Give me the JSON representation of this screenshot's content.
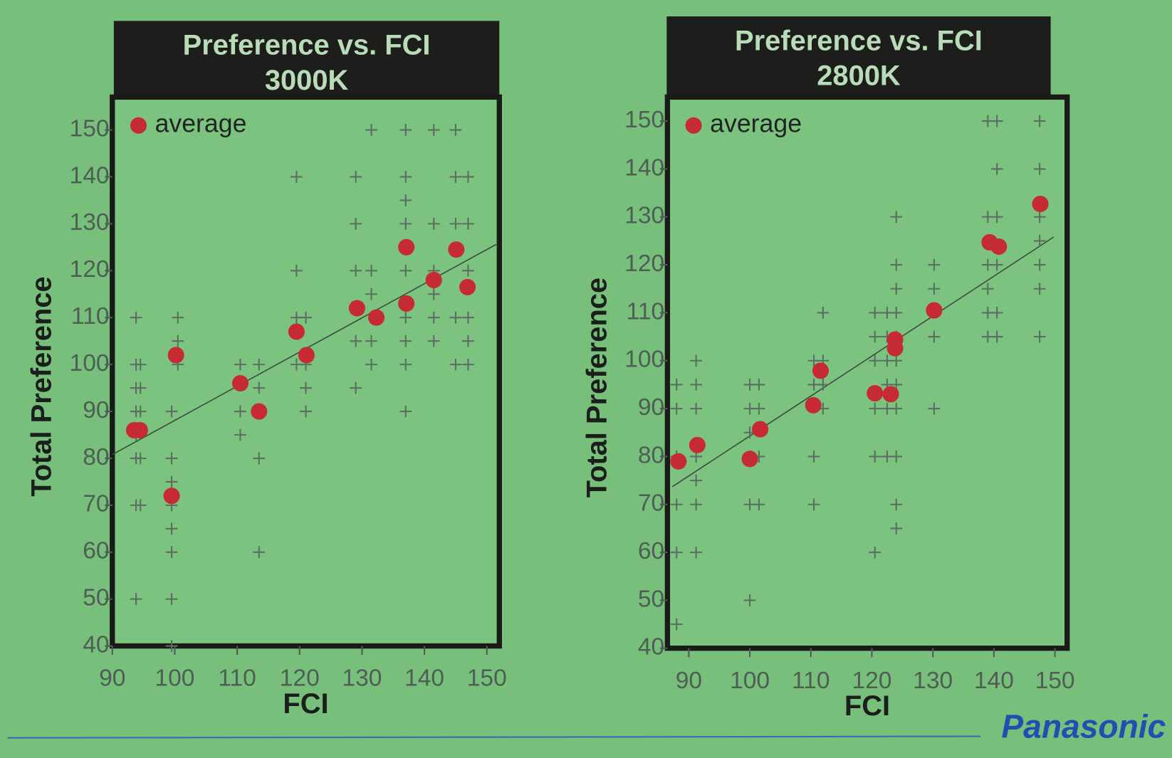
{
  "chart_data": [
    {
      "type": "scatter",
      "title": "Preference vs. FCI",
      "subtitle": "3000K",
      "x_label": "FCI",
      "y_label": "Total Preference",
      "xlim": [
        90,
        152
      ],
      "ylim": [
        40,
        157
      ],
      "xticks": [
        90,
        100,
        110,
        120,
        130,
        140,
        150
      ],
      "yticks": [
        40,
        50,
        60,
        70,
        80,
        90,
        100,
        110,
        120,
        130,
        140,
        150
      ],
      "legend": "upper left",
      "series": [
        {
          "marker": "plus",
          "color": "#5b6e63",
          "x": [
            93.8,
            93.8,
            93.8,
            93.8,
            93.8,
            93.8,
            93.8,
            93.8,
            94.5,
            94.5,
            94.5,
            94.5,
            94.5,
            99.5,
            99.5,
            99.5,
            99.5,
            99.5,
            99.5,
            99.5,
            99.5,
            100.5,
            100.5,
            100.5,
            110.5,
            110.5,
            110.5,
            113.5,
            113.5,
            113.5,
            113.5,
            119.5,
            119.5,
            119.5,
            119.5,
            121,
            121,
            121,
            121,
            129,
            129,
            129,
            129,
            129,
            131.5,
            131.5,
            131.5,
            131.5,
            131.5,
            137,
            137,
            137,
            137,
            137,
            137,
            137,
            137,
            137,
            141.5,
            141.5,
            141.5,
            141.5,
            141.5,
            141.5,
            145,
            145,
            145,
            145,
            145,
            147,
            147,
            147,
            147,
            147,
            147
          ],
          "values": [
            110,
            100,
            95,
            90,
            85,
            80,
            70,
            50,
            100,
            95,
            90,
            80,
            70,
            90,
            80,
            75,
            70,
            65,
            60,
            50,
            40,
            110,
            105,
            100,
            100,
            90,
            85,
            100,
            95,
            80,
            60,
            140,
            120,
            110,
            100,
            110,
            100,
            95,
            90,
            140,
            130,
            120,
            105,
            95,
            150,
            120,
            115,
            105,
            100,
            150,
            140,
            135,
            130,
            120,
            110,
            105,
            100,
            90,
            150,
            130,
            120,
            115,
            110,
            105,
            150,
            140,
            130,
            110,
            100,
            140,
            130,
            120,
            110,
            105,
            100
          ]
        },
        {
          "name": "average",
          "marker": "circle",
          "color": "#c62a33",
          "x": [
            93.5,
            94.4,
            100.2,
            99.5,
            110.5,
            113.5,
            119.5,
            121.1,
            129.2,
            132.3,
            137.1,
            137.1,
            141.5,
            145.1,
            146.9
          ],
          "values": [
            86,
            86,
            102,
            72,
            96,
            90,
            107,
            102,
            112,
            110,
            125,
            113,
            118,
            124.5,
            116.5
          ]
        }
      ],
      "fit": {
        "color": "#3c4a40",
        "x": [
          90,
          151.5
        ],
        "values": [
          80.8,
          125.6
        ]
      }
    },
    {
      "type": "scatter",
      "title": "Preference vs. FCI",
      "subtitle": "2800K",
      "x_label": "FCI",
      "y_label": "Total Preference",
      "xlim": [
        86.5,
        152
      ],
      "ylim": [
        40,
        155
      ],
      "xticks": [
        90,
        100,
        110,
        120,
        130,
        140,
        150
      ],
      "yticks": [
        40,
        50,
        60,
        70,
        80,
        90,
        100,
        110,
        120,
        130,
        140,
        150
      ],
      "legend": "upper left",
      "series": [
        {
          "marker": "plus",
          "color": "#5b6e63",
          "x": [
            88,
            88,
            88,
            88,
            88,
            88,
            91.2,
            91.2,
            91.2,
            91.2,
            91.2,
            91.2,
            91.2,
            100,
            100,
            100,
            100,
            100,
            100,
            101.5,
            101.5,
            101.5,
            101.5,
            110.5,
            110.5,
            110.5,
            110.5,
            112,
            112,
            112,
            112,
            120.5,
            120.5,
            120.5,
            120.5,
            120.5,
            120.5,
            122.5,
            122.5,
            122.5,
            122.5,
            122.5,
            122.5,
            124,
            124,
            124,
            124,
            124,
            124,
            124,
            124,
            124,
            124,
            124,
            130.2,
            130.2,
            130.2,
            130.2,
            139,
            139,
            139,
            139,
            139,
            139,
            140.5,
            140.5,
            140.5,
            140.5,
            140.5,
            140.5,
            147.5,
            147.5,
            147.5,
            147.5,
            147.5,
            147.5,
            147.5
          ],
          "values": [
            95,
            90,
            80,
            70,
            60,
            45,
            100,
            95,
            90,
            80,
            75,
            70,
            60,
            95,
            90,
            85,
            80,
            70,
            50,
            95,
            90,
            80,
            70,
            100,
            95,
            80,
            70,
            110,
            100,
            95,
            90,
            110,
            105,
            100,
            90,
            80,
            60,
            110,
            105,
            100,
            95,
            90,
            80,
            130,
            120,
            115,
            110,
            105,
            100,
            95,
            90,
            80,
            70,
            65,
            120,
            115,
            105,
            90,
            150,
            130,
            120,
            115,
            110,
            105,
            150,
            140,
            130,
            120,
            110,
            105,
            150,
            140,
            130,
            125,
            120,
            115,
            105
          ]
        },
        {
          "name": "average",
          "marker": "circle",
          "color": "#c62a33",
          "x": [
            88.3,
            91.4,
            100,
            101.7,
            110.4,
            111.6,
            120.5,
            123.1,
            123.8,
            123.8,
            130.2,
            139.3,
            140.8,
            147.6
          ],
          "values": [
            79,
            82.4,
            79.5,
            85.7,
            90.7,
            97.9,
            93.2,
            93,
            104.4,
            102.6,
            110.5,
            124.7,
            123.8,
            132.7
          ]
        }
      ],
      "fit": {
        "color": "#3c4a40",
        "x": [
          87.3,
          149.8
        ],
        "values": [
          73.7,
          125.8
        ]
      }
    }
  ],
  "footer": {
    "brand": "Panasonic"
  }
}
